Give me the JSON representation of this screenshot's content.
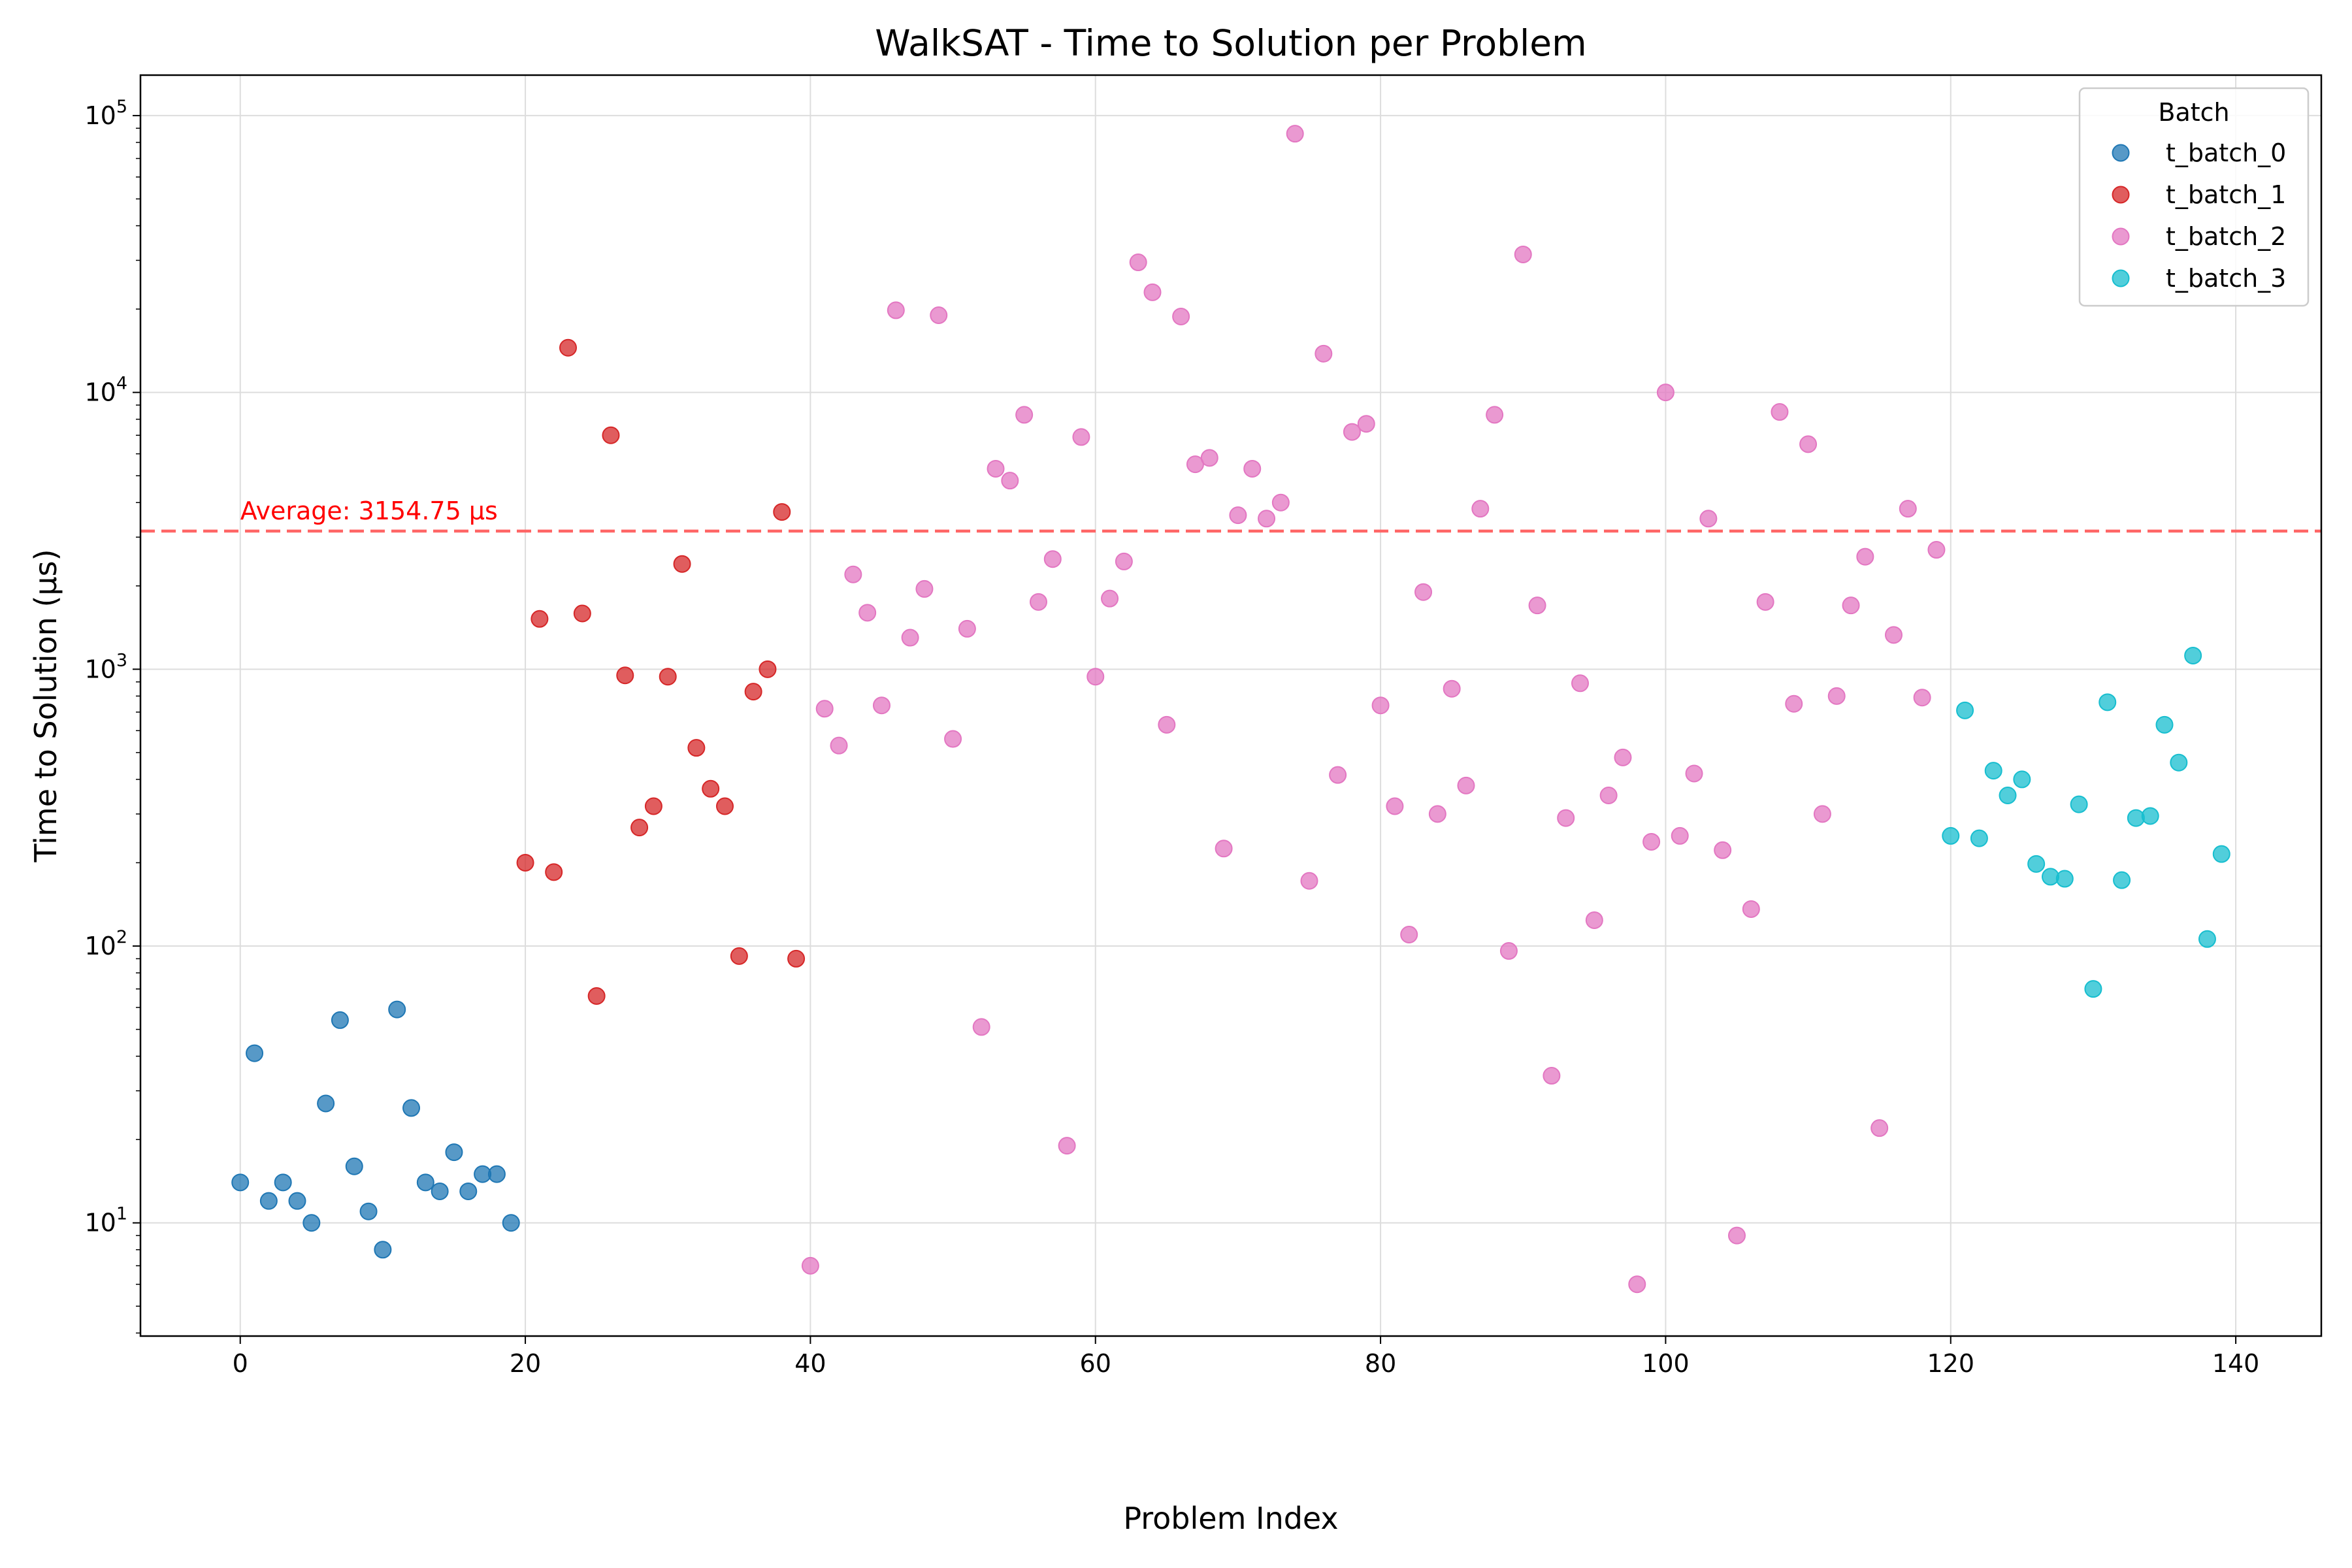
{
  "chart_data": {
    "type": "scatter",
    "title": "WalkSAT - Time to Solution per Problem",
    "xlabel": "Problem Index",
    "ylabel": "Time to Solution (μs)",
    "xlim": [
      -7,
      146
    ],
    "ylim": [
      3.9,
      140000
    ],
    "y_scale": "log",
    "grid": true,
    "legend": {
      "title": "Batch",
      "placement": "top-right"
    },
    "x_ticks": [
      0,
      20,
      40,
      60,
      80,
      100,
      120,
      140
    ],
    "y_ticks": [
      {
        "value": 10,
        "base": "10",
        "exp": "1"
      },
      {
        "value": 100,
        "base": "10",
        "exp": "2"
      },
      {
        "value": 1000,
        "base": "10",
        "exp": "3"
      },
      {
        "value": 10000,
        "base": "10",
        "exp": "4"
      },
      {
        "value": 100000,
        "base": "10",
        "exp": "5"
      }
    ],
    "average": {
      "value": 3154.75,
      "label": "Average: 3154.75 μs",
      "color": "#ff6666",
      "text_color": "#ff0000"
    },
    "series": [
      {
        "name": "t_batch_0",
        "color": "#1f77b4",
        "x": [
          0,
          1,
          2,
          3,
          4,
          5,
          6,
          7,
          8,
          9,
          10,
          11,
          12,
          13,
          14,
          15,
          16,
          17,
          18,
          19
        ],
        "y": [
          14,
          41,
          12,
          14,
          12,
          10,
          27,
          54,
          16,
          11,
          8,
          59,
          26,
          14,
          13,
          18,
          13,
          15,
          15,
          10
        ]
      },
      {
        "name": "t_batch_1",
        "color": "#d62728",
        "x": [
          20,
          21,
          22,
          23,
          24,
          25,
          26,
          27,
          28,
          29,
          30,
          31,
          32,
          33,
          34,
          35,
          36,
          37,
          38,
          39
        ],
        "y": [
          200,
          1520,
          185,
          14500,
          1590,
          66,
          7000,
          950,
          268,
          320,
          940,
          2400,
          520,
          370,
          320,
          92,
          830,
          1000,
          3700,
          90
        ]
      },
      {
        "name": "t_batch_2",
        "color": "#e377c2",
        "x": [
          40,
          41,
          42,
          43,
          44,
          45,
          46,
          47,
          48,
          49,
          50,
          51,
          52,
          53,
          54,
          55,
          56,
          57,
          58,
          59,
          60,
          61,
          62,
          63,
          64,
          65,
          66,
          67,
          68,
          69,
          70,
          71,
          72,
          73,
          74,
          75,
          76,
          77,
          78,
          79,
          80,
          81,
          82,
          83,
          84,
          85,
          86,
          87,
          88,
          89,
          90,
          91,
          92,
          93,
          94,
          95,
          96,
          97,
          98,
          99,
          100,
          101,
          102,
          103,
          104,
          105,
          106,
          107,
          108,
          109,
          110,
          111,
          112,
          113,
          114,
          115,
          116,
          117,
          118,
          119
        ],
        "y": [
          7,
          720,
          530,
          2200,
          1600,
          740,
          19800,
          1300,
          1950,
          19000,
          560,
          1400,
          51,
          5300,
          4800,
          8300,
          1750,
          2500,
          19,
          6900,
          940,
          1800,
          2450,
          29500,
          23000,
          630,
          18800,
          5500,
          5800,
          225,
          3600,
          5300,
          3500,
          4000,
          86000,
          172,
          13800,
          415,
          7200,
          7700,
          740,
          320,
          110,
          1900,
          300,
          850,
          380,
          3800,
          8300,
          96,
          31500,
          1700,
          34,
          290,
          890,
          124,
          350,
          480,
          6,
          238,
          10000,
          250,
          420,
          3500,
          222,
          9,
          136,
          1750,
          8500,
          750,
          6500,
          300,
          800,
          1700,
          2550,
          22,
          1330,
          3800,
          790,
          2700
        ]
      },
      {
        "name": "t_batch_3",
        "color": "#17becf",
        "x": [
          120,
          121,
          122,
          123,
          124,
          125,
          126,
          127,
          128,
          129,
          130,
          131,
          132,
          133,
          134,
          135,
          136,
          137,
          138,
          139
        ],
        "y": [
          250,
          710,
          245,
          430,
          350,
          400,
          198,
          178,
          175,
          325,
          70,
          760,
          173,
          290,
          295,
          630,
          460,
          1120,
          106,
          215
        ]
      }
    ]
  }
}
